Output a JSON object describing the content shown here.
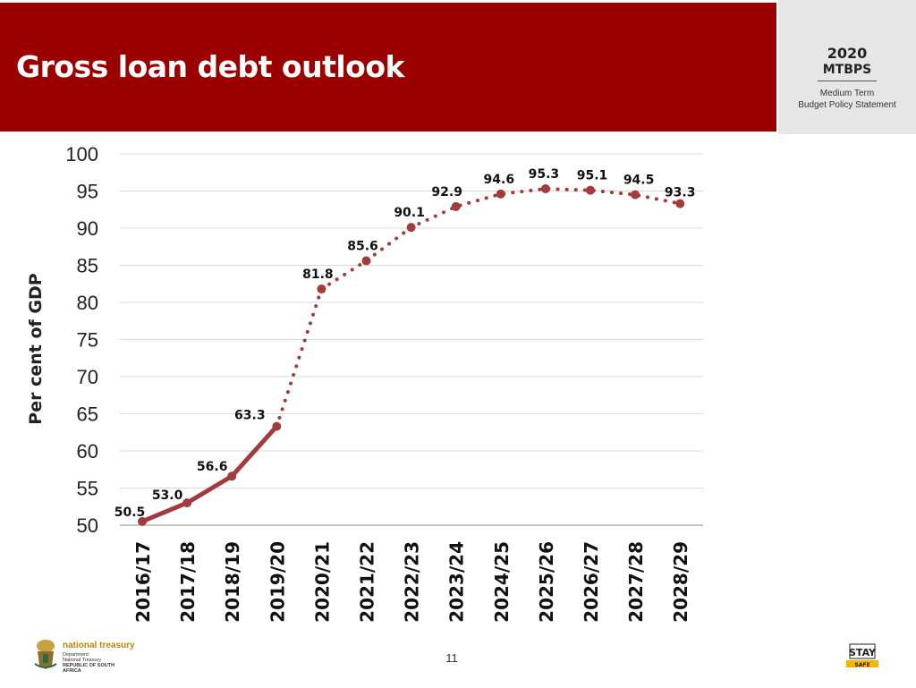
{
  "header": {
    "title": "Gross loan debt outlook",
    "badge_year": "2020",
    "badge_name": "MTBPS",
    "badge_sub1": "Medium Term",
    "badge_sub2": "Budget Policy Statement"
  },
  "footer": {
    "brand": "national treasury",
    "dept_line1": "Department:",
    "dept_line2": "National Treasury",
    "dept_line3": "REPUBLIC OF SOUTH AFRICA",
    "page_number": "11",
    "stay_safe": "STAY SAFE"
  },
  "colors": {
    "header_bg": "#9b0000",
    "series": "#a23b3b",
    "grid": "#d9d9d9"
  },
  "chart_data": {
    "type": "line",
    "title": "",
    "xlabel": "",
    "ylabel": "Per cent of GDP",
    "ylim": [
      50,
      100
    ],
    "yticks": [
      100,
      95,
      90,
      85,
      80,
      75,
      70,
      65,
      60,
      55,
      50
    ],
    "grid": true,
    "categories": [
      "2016/17",
      "2017/18",
      "2018/19",
      "2019/20",
      "2020/21",
      "2021/22",
      "2022/23",
      "2023/24",
      "2024/25",
      "2025/26",
      "2026/27",
      "2027/28",
      "2028/29"
    ],
    "values": [
      50.5,
      53.0,
      56.6,
      63.3,
      81.8,
      85.6,
      90.1,
      92.9,
      94.6,
      95.3,
      95.1,
      94.5,
      93.3
    ],
    "labels": [
      "50.5",
      "53.0",
      "56.6",
      "63.3",
      "81.8",
      "85.6",
      "90.1",
      "92.9",
      "94.6",
      "95.3",
      "95.1",
      "94.5",
      "93.3"
    ],
    "series_styles": [
      {
        "segment": "actual",
        "from_index": 0,
        "to_index": 3,
        "style": "solid"
      },
      {
        "segment": "projection",
        "from_index": 3,
        "to_index": 12,
        "style": "dotted"
      }
    ]
  }
}
